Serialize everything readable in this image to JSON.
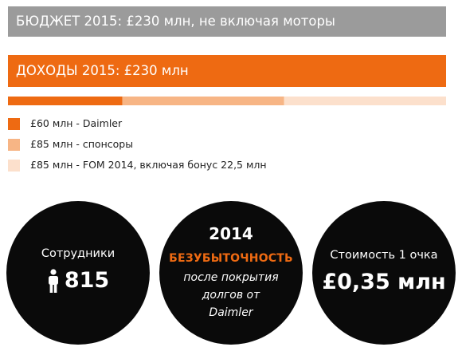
{
  "budget_banner": "БЮДЖЕТ 2015: £230 млн, не включая моторы",
  "income_banner": "ДОХОДЫ 2015: £230 млн",
  "colors": {
    "gray": "#9b9b9b",
    "orange": "#ee6a12",
    "light_orange": "#f7b585",
    "pale_orange": "#fce0cc"
  },
  "chart_data": {
    "type": "bar",
    "orientation": "horizontal-stacked",
    "unit": "£ млн",
    "total": 230,
    "series": [
      {
        "name": "£60 млн - Daimler",
        "value": 60,
        "color": "#ee6a12"
      },
      {
        "name": "£85 млн - спонсоры",
        "value": 85,
        "color": "#f7b585"
      },
      {
        "name": "£85 млн - FOM 2014, включая бонус 22,5 млн",
        "value": 85,
        "color": "#fce0cc"
      }
    ]
  },
  "stats": {
    "staff_label": "Сотрудники",
    "staff_icon": "person-icon",
    "staff_value": "815",
    "year": "2014",
    "breakeven": "БЕЗУБЫТОЧНОСТЬ",
    "breakeven_lines": [
      "после покрытия",
      "долгов от",
      "Daimler"
    ],
    "point_label": "Стоимость 1 очка",
    "point_value": "£0,35 млн"
  }
}
